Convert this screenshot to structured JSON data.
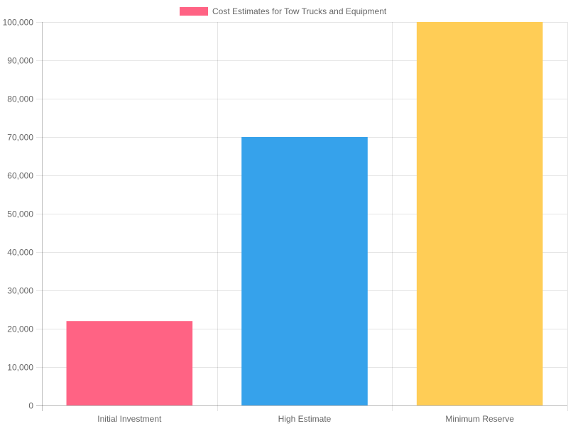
{
  "chart_data": {
    "type": "bar",
    "categories": [
      "Initial Investment",
      "High Estimate",
      "Minimum Reserve"
    ],
    "series": [
      {
        "name": "Cost Estimates for Tow Trucks and Equipment",
        "values": [
          22000,
          70000,
          100000
        ],
        "colors": [
          "#ff6384",
          "#36a2eb",
          "#ffcd56"
        ]
      }
    ],
    "legend": {
      "label": "Cost Estimates for Tow Trucks and Equipment",
      "color": "#ff6384",
      "position": "top-center"
    },
    "ylim": [
      0,
      100000
    ],
    "yticks": [
      "0",
      "10,000",
      "20,000",
      "30,000",
      "40,000",
      "50,000",
      "60,000",
      "70,000",
      "80,000",
      "90,000",
      "100,000"
    ],
    "grid": true
  }
}
